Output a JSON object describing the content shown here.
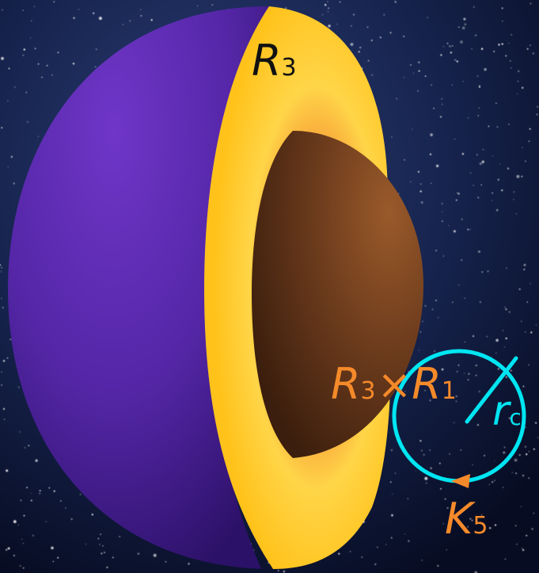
{
  "labels": {
    "outer_radius": {
      "symbol": "R",
      "sub": "3"
    },
    "cross_product": {
      "left_symbol": "R",
      "left_sub": "3",
      "operator": "×",
      "right_symbol": "R",
      "right_sub": "1"
    },
    "circle_radius": {
      "symbol": "r",
      "sub": "c"
    },
    "circulation": {
      "symbol": "K",
      "sub": "5"
    }
  },
  "colors": {
    "background": "#0b1230",
    "outer_shell": "#5a2bb0",
    "cut_face": "#ffc21a",
    "core": "#6a3a1c",
    "accent_orange": "#f58a2a",
    "circle_cyan": "#00e5f2",
    "label_dark": "#111111"
  }
}
